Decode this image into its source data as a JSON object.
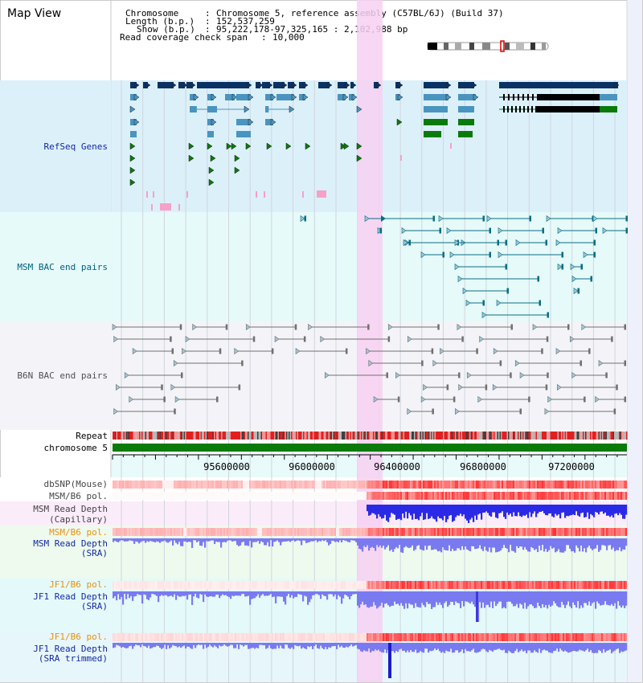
{
  "title": "Map View",
  "info": {
    "chromosome_label": "Chromosome",
    "chromosome_value": "Chromosome 5, reference assembly (C57BL/6J) (Build 37)",
    "length_label": "Length (b.p.)",
    "length_value": "152,537,259",
    "show_label": "Show (b.p.)",
    "show_value": "95,222,178-97,325,165 : 2,102,988 bp",
    "coverage_label": "Read coverage check span",
    "coverage_value": "10,000"
  },
  "ruler": {
    "ticks": [
      "95600000",
      "96000000",
      "96400000",
      "96800000",
      "97200000"
    ]
  },
  "tracks": {
    "refseq": "RefSeq Genes",
    "msm_bac": "MSM BAC end pairs",
    "b6n_bac": "B6N BAC end pairs",
    "repeat": "Repeat",
    "chromosome": "chromosome 5",
    "dbsnp": "dbSNP(Mouse)",
    "msm_b6_pol_1": "MSM/B6 pol.",
    "msm_depth_cap_1": "MSM Read Depth",
    "msm_depth_cap_2": "(Capillary)",
    "msm_b6_pol_2": "MSM/B6 pol.",
    "msm_depth_sra_1": "MSM Read Depth",
    "msm_depth_sra_2": "(SRA)",
    "jf1_b6_pol_1": "JF1/B6 pol.",
    "jf1_depth_sra_1": "JF1 Read Depth",
    "jf1_depth_sra_2": "(SRA)",
    "jf1_b6_pol_2": "JF1/B6 pol.",
    "jf1_depth_trim_1": "JF1 Read Depth",
    "jf1_depth_trim_2": "(SRA trimmed)"
  },
  "colors": {
    "refseq_bg": "#dcf0fa",
    "bac_bg": "#e6fafa",
    "b6n_bg": "#f4f4f8",
    "highlight": "#f7d0f2",
    "navy": "#0a3264",
    "steel": "#4a94c0",
    "green": "#0a7a0a",
    "teal": "#0a6e82",
    "gray": "#707070",
    "pol_red": "#e03030",
    "depth_blue": "#2a2ae6",
    "depth_light": "#7a7af0",
    "label_blue": "#1428a0",
    "label_teal": "#006080",
    "label_gray": "#505050",
    "label_orange": "#e89010"
  }
}
